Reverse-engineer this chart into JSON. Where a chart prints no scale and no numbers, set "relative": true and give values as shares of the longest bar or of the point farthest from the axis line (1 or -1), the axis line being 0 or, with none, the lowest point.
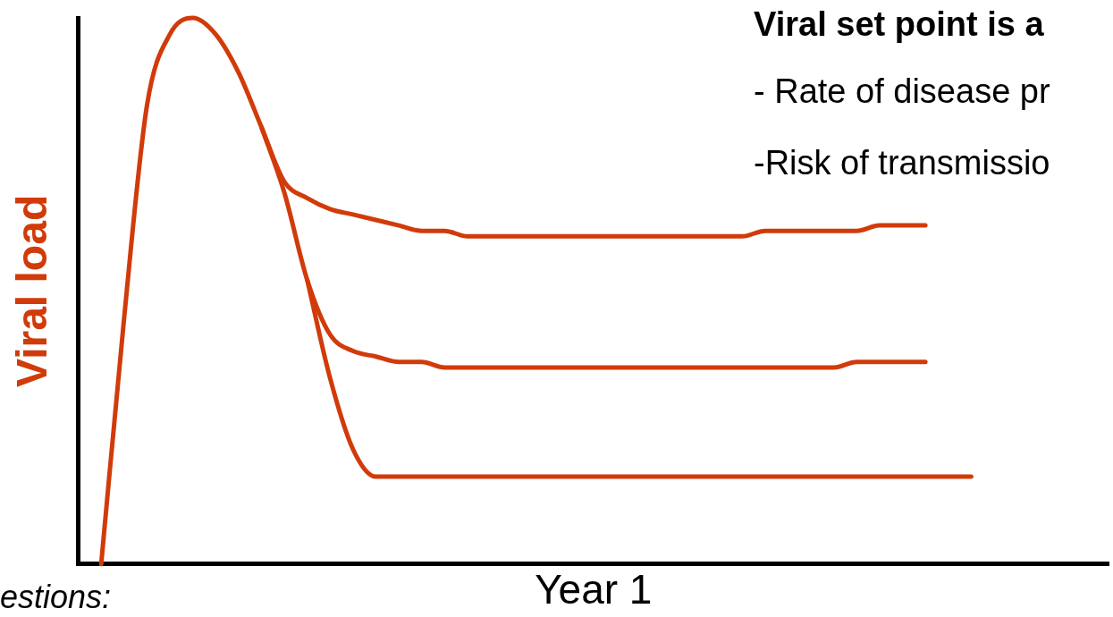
{
  "chart_data": {
    "type": "line",
    "relative": true,
    "xlabel": "Year 1",
    "ylabel": "Viral load",
    "marker": "none",
    "line_style": "solid",
    "legend": false,
    "annotations": [
      "Viral set point is a",
      "- Rate of disease pr",
      "-Risk of transmissio",
      "estions:"
    ],
    "categories": [
      null,
      null,
      null,
      null,
      null,
      null,
      null,
      null,
      null,
      null,
      null,
      null,
      null,
      null,
      null,
      null,
      null,
      null,
      null,
      null,
      null,
      null,
      null,
      null,
      null,
      null,
      null,
      null,
      null,
      null,
      null,
      null,
      null,
      null,
      null,
      null,
      null,
      null,
      null,
      null,
      null,
      null,
      null,
      null,
      null,
      null
    ],
    "series": [
      {
        "color": "#d13b0a",
        "values": [
          null,
          0,
          0.45,
          0.84,
          0.97,
          1,
          0.97,
          0.9,
          0.8,
          0.7,
          0.67,
          0.65,
          0.64,
          0.63,
          0.62,
          0.61,
          0.61,
          0.6,
          0.6,
          0.6,
          0.6,
          0.6,
          0.6,
          0.6,
          0.6,
          0.6,
          0.6,
          0.6,
          0.6,
          0.6,
          0.61,
          0.61,
          0.61,
          0.61,
          0.61,
          0.62,
          0.62,
          0.62,
          null,
          null,
          null,
          null,
          null,
          null,
          null,
          null
        ]
      },
      {
        "color": "#d13b0a",
        "values": [
          null,
          null,
          null,
          null,
          null,
          null,
          null,
          null,
          0.8,
          0.68,
          0.52,
          0.42,
          0.39,
          0.38,
          0.37,
          0.37,
          0.36,
          0.36,
          0.36,
          0.36,
          0.36,
          0.36,
          0.36,
          0.36,
          0.36,
          0.36,
          0.36,
          0.36,
          0.36,
          0.36,
          0.36,
          0.36,
          0.36,
          0.36,
          0.37,
          0.37,
          0.37,
          0.37,
          null,
          null,
          null,
          null,
          null,
          null,
          null,
          null
        ]
      },
      {
        "color": "#d13b0a",
        "values": [
          null,
          null,
          null,
          null,
          null,
          null,
          null,
          null,
          null,
          null,
          0.52,
          0.34,
          0.21,
          0.16,
          0.16,
          0.16,
          0.16,
          0.16,
          0.16,
          0.16,
          0.16,
          0.16,
          0.16,
          0.16,
          0.16,
          0.16,
          0.16,
          0.16,
          0.16,
          0.16,
          0.16,
          0.16,
          0.16,
          0.16,
          0.16,
          0.16,
          0.16,
          0.16,
          0.16,
          0.16,
          null,
          null,
          null,
          null,
          null,
          null
        ]
      }
    ]
  }
}
